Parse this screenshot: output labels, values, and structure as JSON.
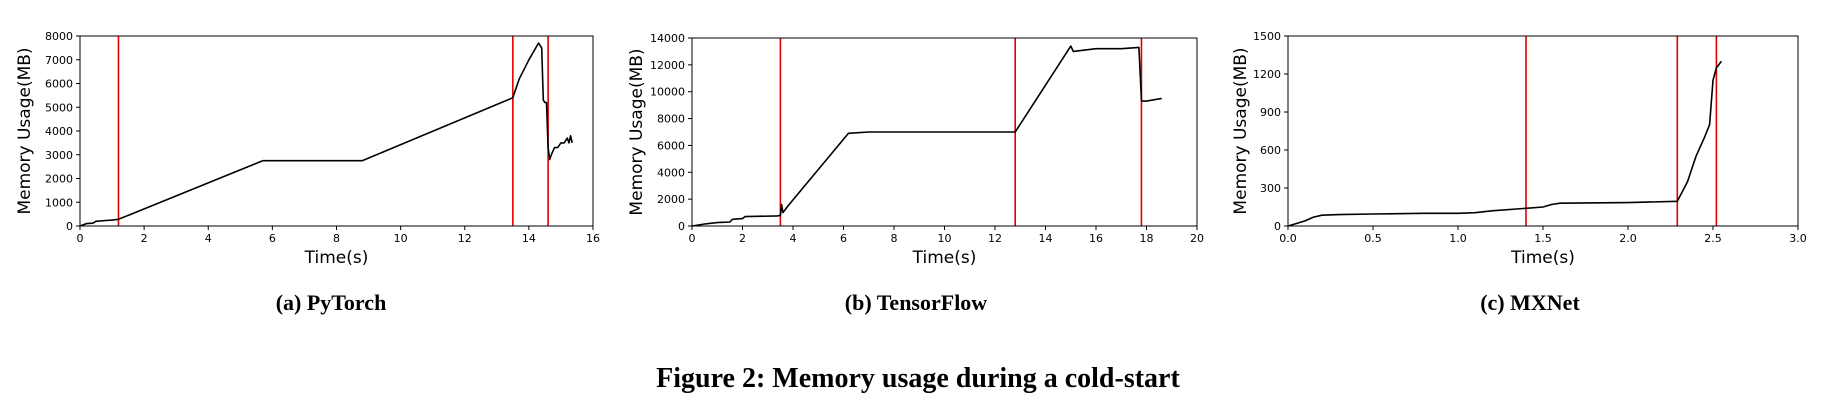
{
  "figure_caption": "Figure 2: Memory usage during a cold-start",
  "chart_data": [
    {
      "type": "line",
      "caption": "(a) PyTorch",
      "xlabel": "Time(s)",
      "ylabel": "Memory Usage(MB)",
      "xlim": [
        0,
        16
      ],
      "ylim": [
        0,
        8000
      ],
      "xticks": [
        0,
        2,
        4,
        6,
        8,
        10,
        12,
        14,
        16
      ],
      "yticks": [
        0,
        1000,
        2000,
        3000,
        4000,
        5000,
        6000,
        7000,
        8000
      ],
      "line_color": "#000000",
      "vline_color": "#e00000",
      "vlines": [
        1.2,
        13.5,
        14.6
      ],
      "series": [
        {
          "x": [
            0,
            0.2,
            0.4,
            0.5,
            0.8,
            1.0,
            1.2,
            5.7,
            8.8,
            13.5,
            13.7,
            14.0,
            14.3,
            14.4,
            14.45,
            14.5,
            14.55,
            14.6,
            14.65,
            14.7,
            14.8,
            14.9,
            15.0,
            15.1,
            15.2,
            15.25,
            15.3,
            15.35
          ],
          "y": [
            0,
            100,
            120,
            200,
            230,
            250,
            280,
            2750,
            2750,
            5400,
            6200,
            7000,
            7700,
            7500,
            5300,
            5200,
            5200,
            3300,
            2800,
            3000,
            3300,
            3300,
            3500,
            3500,
            3700,
            3500,
            3800,
            3500
          ]
        }
      ]
    },
    {
      "type": "line",
      "caption": "(b) TensorFlow",
      "xlabel": "Time(s)",
      "ylabel": "Memory Usage(MB)",
      "xlim": [
        0,
        20
      ],
      "ylim": [
        0,
        14000
      ],
      "xticks": [
        0,
        2,
        4,
        6,
        8,
        10,
        12,
        14,
        16,
        18,
        20
      ],
      "yticks": [
        0,
        2000,
        4000,
        6000,
        8000,
        10000,
        12000,
        14000
      ],
      "line_color": "#000000",
      "vline_color": "#e00000",
      "vlines": [
        3.5,
        12.8,
        17.8
      ],
      "series": [
        {
          "x": [
            0,
            0.5,
            1.0,
            1.5,
            1.6,
            2.0,
            2.1,
            3.4,
            3.5,
            3.55,
            3.6,
            3.8,
            6.2,
            7.0,
            12.8,
            15.0,
            15.1,
            16.0,
            17.0,
            17.7,
            17.8,
            18.0,
            18.6
          ],
          "y": [
            0,
            150,
            250,
            300,
            500,
            550,
            700,
            750,
            800,
            1600,
            1000,
            1500,
            6900,
            7000,
            7000,
            13400,
            13000,
            13200,
            13200,
            13300,
            9300,
            9300,
            9500
          ]
        }
      ]
    },
    {
      "type": "line",
      "caption": "(c) MXNet",
      "xlabel": "Time(s)",
      "ylabel": "Memory Usage(MB)",
      "xlim": [
        0,
        3.0
      ],
      "ylim": [
        0,
        1500
      ],
      "xticks": [
        "0.0",
        "0.5",
        "1.0",
        "1.5",
        "2.0",
        "2.5",
        "3.0"
      ],
      "yticks": [
        0,
        300,
        600,
        900,
        1200,
        1500
      ],
      "line_color": "#000000",
      "vline_color": "#e00000",
      "vlines": [
        1.4,
        2.29,
        2.52
      ],
      "series": [
        {
          "x": [
            0,
            0.05,
            0.1,
            0.15,
            0.2,
            0.3,
            0.5,
            0.8,
            1.0,
            1.1,
            1.2,
            1.4,
            1.5,
            1.55,
            1.6,
            2.0,
            2.29,
            2.35,
            2.4,
            2.45,
            2.48,
            2.5,
            2.52,
            2.55
          ],
          "y": [
            0,
            20,
            40,
            70,
            85,
            90,
            95,
            100,
            100,
            105,
            120,
            140,
            150,
            170,
            180,
            185,
            195,
            350,
            550,
            700,
            800,
            1150,
            1250,
            1300
          ]
        }
      ]
    }
  ]
}
